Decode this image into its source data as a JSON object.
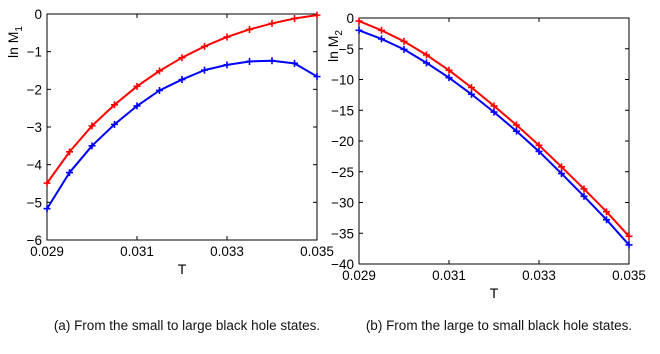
{
  "chart_data": [
    {
      "type": "line",
      "xlabel": "T",
      "ylabel": "ln M",
      "ylabel_sub": "1",
      "xlim": [
        0.029,
        0.035
      ],
      "ylim": [
        -6,
        0
      ],
      "x_ticks": [
        0.029,
        0.031,
        0.033,
        0.035
      ],
      "x_tick_labels": [
        "0.029",
        "0.031",
        "0.033",
        "0.035"
      ],
      "y_ticks": [
        -6,
        -5,
        -4,
        -3,
        -2,
        -1,
        0
      ],
      "y_tick_labels": [
        "−6",
        "−5",
        "−4",
        "−3",
        "−2",
        "−1",
        "0"
      ],
      "grid": false,
      "x": [
        0.029,
        0.0295,
        0.03,
        0.0305,
        0.031,
        0.0315,
        0.032,
        0.0325,
        0.033,
        0.0335,
        0.034,
        0.0345,
        0.035
      ],
      "series": [
        {
          "color": "#ff0000",
          "values": [
            -4.49,
            -3.66,
            -2.97,
            -2.41,
            -1.92,
            -1.51,
            -1.16,
            -0.86,
            -0.61,
            -0.41,
            -0.25,
            -0.12,
            -0.03
          ]
        },
        {
          "color": "#0000ff",
          "values": [
            -5.17,
            -4.21,
            -3.5,
            -2.93,
            -2.44,
            -2.03,
            -1.74,
            -1.49,
            -1.35,
            -1.26,
            -1.24,
            -1.31,
            -1.66
          ]
        }
      ],
      "caption": "(a) From the small to large black hole states."
    },
    {
      "type": "line",
      "xlabel": "T",
      "ylabel": "ln M",
      "ylabel_sub": "2",
      "xlim": [
        0.029,
        0.035
      ],
      "ylim": [
        -40,
        0
      ],
      "x_ticks": [
        0.029,
        0.031,
        0.033,
        0.035
      ],
      "x_tick_labels": [
        "0.029",
        "0.031",
        "0.033",
        "0.035"
      ],
      "y_ticks": [
        -40,
        -35,
        -30,
        -25,
        -20,
        -15,
        -10,
        -5,
        0
      ],
      "y_tick_labels": [
        "−40",
        "−35",
        "−30",
        "−25",
        "−20",
        "−15",
        "−10",
        "−5",
        "0"
      ],
      "grid": false,
      "x": [
        0.029,
        0.0295,
        0.03,
        0.0305,
        0.031,
        0.0315,
        0.032,
        0.0325,
        0.033,
        0.0335,
        0.034,
        0.0345,
        0.035
      ],
      "series": [
        {
          "color": "#ff0000",
          "values": [
            -0.5,
            -2.0,
            -3.8,
            -6.0,
            -8.5,
            -11.3,
            -14.3,
            -17.4,
            -20.7,
            -24.2,
            -27.8,
            -31.5,
            -35.5
          ]
        },
        {
          "color": "#0000ff",
          "values": [
            -2.0,
            -3.4,
            -5.1,
            -7.3,
            -9.7,
            -12.4,
            -15.3,
            -18.4,
            -21.7,
            -25.3,
            -29.0,
            -32.8,
            -36.9
          ]
        }
      ],
      "caption": "(b) From the large to small black hole states."
    }
  ]
}
